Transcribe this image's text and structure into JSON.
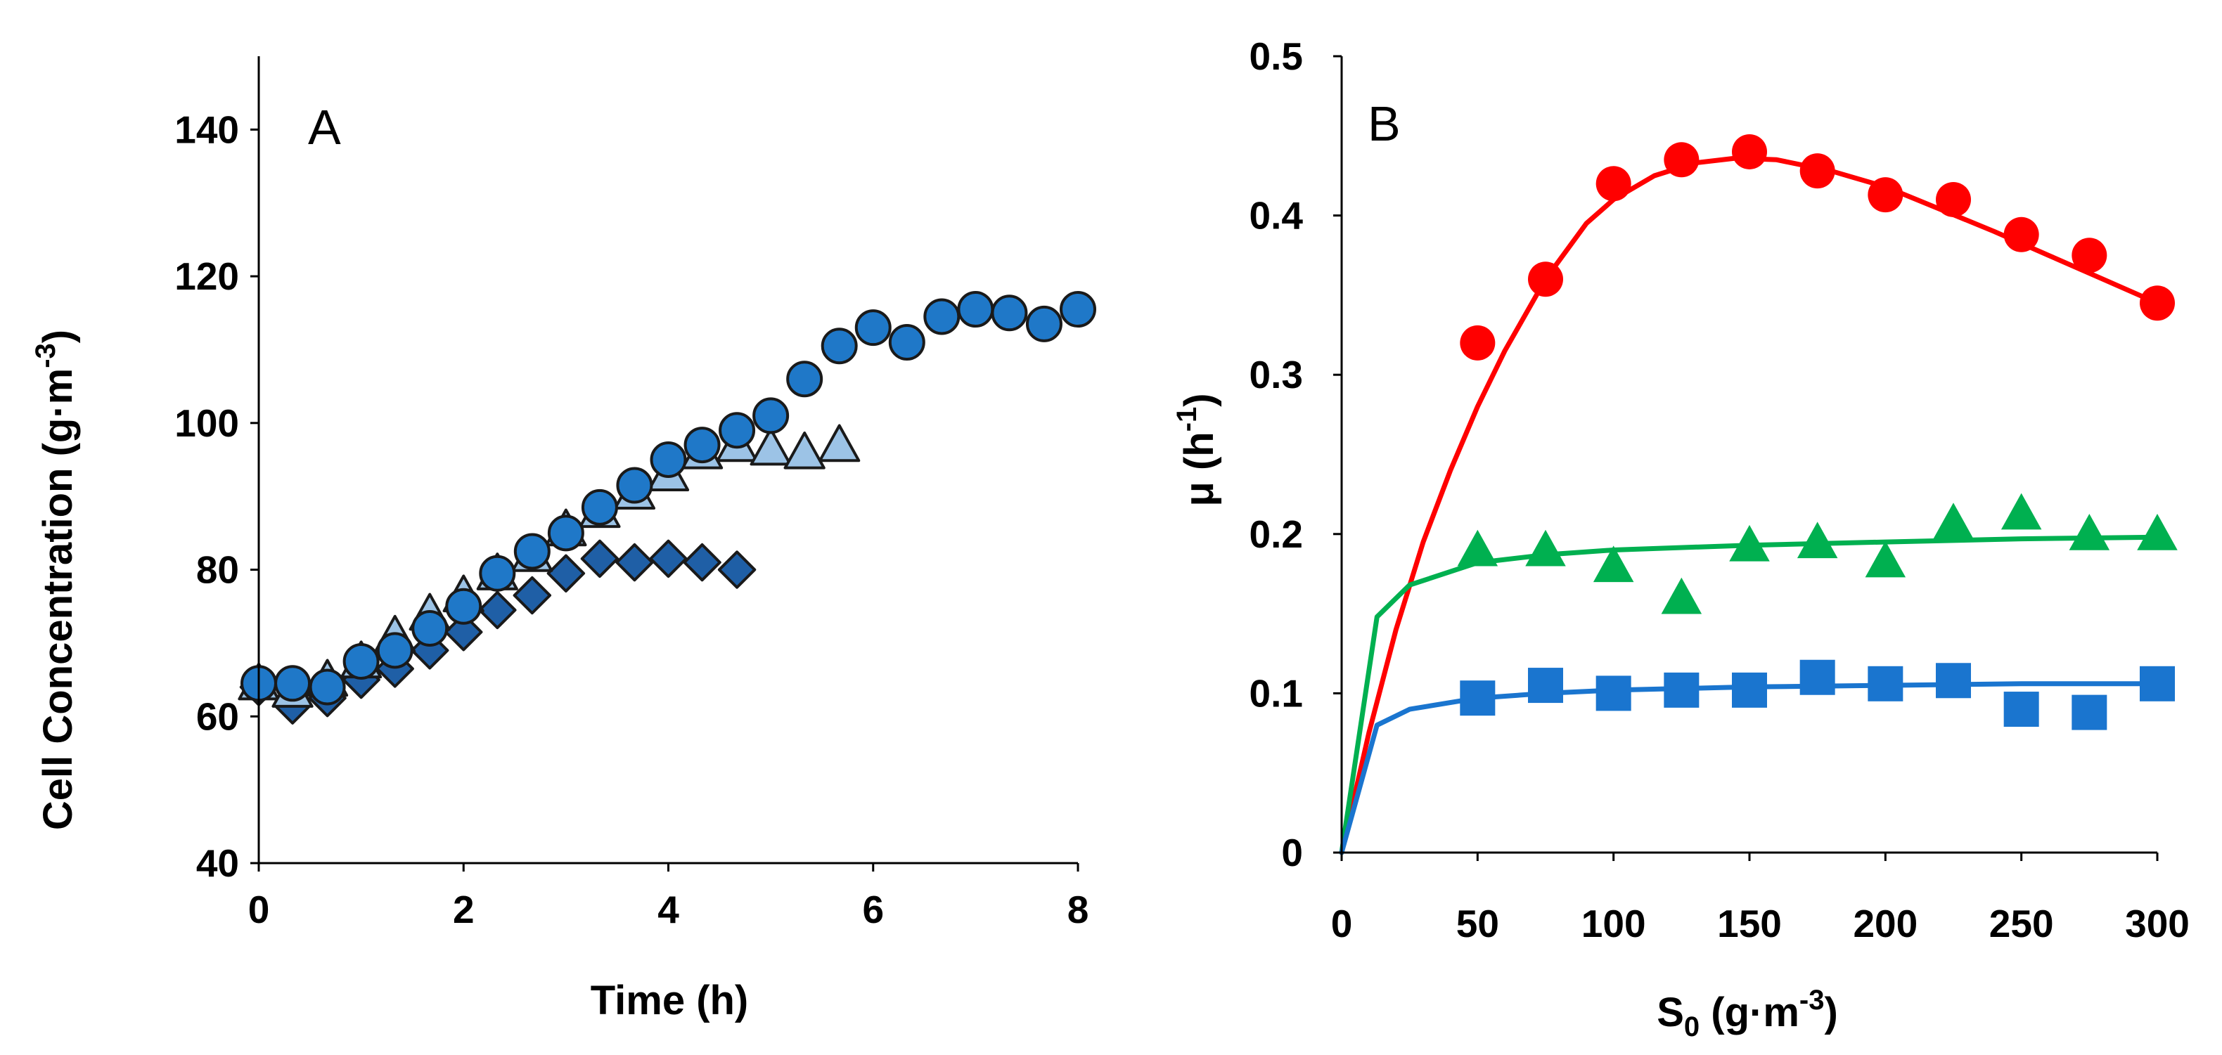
{
  "chart_data": [
    {
      "type": "scatter",
      "panel_label": "A",
      "xlabel": "Time (h)",
      "ylabel": {
        "main": "Cell Concentration (g·m",
        "sup": "-3",
        "end": ")"
      },
      "xlim": [
        0,
        8
      ],
      "ylim": [
        40,
        150
      ],
      "xticks": [
        0,
        2,
        4,
        6,
        8
      ],
      "yticks": [
        40,
        60,
        80,
        100,
        120,
        140
      ],
      "grid": false,
      "series": [
        {
          "name": "circles",
          "marker": "circle",
          "color": "#1f78c8",
          "x": [
            0,
            0.33,
            0.67,
            1,
            1.33,
            1.67,
            2,
            2.33,
            2.67,
            3,
            3.33,
            3.67,
            4,
            4.33,
            4.67,
            5,
            5.33,
            5.67,
            6,
            6.33,
            6.67,
            7,
            7.33,
            7.67,
            8
          ],
          "y": [
            64.5,
            64.5,
            64,
            67.5,
            69,
            72,
            75,
            79.5,
            82.5,
            85,
            88.5,
            91.5,
            95,
            97,
            99,
            101,
            106,
            110.5,
            113,
            111,
            114.5,
            115.5,
            115,
            113.5,
            115.5
          ]
        },
        {
          "name": "triangles",
          "marker": "triangle",
          "color": "#9cc3e6",
          "x": [
            0,
            0.33,
            0.67,
            1,
            1.33,
            1.67,
            2,
            2.33,
            2.67,
            3,
            3.33,
            3.67,
            4,
            4.33,
            4.67,
            5,
            5.33,
            5.67
          ],
          "y": [
            64.5,
            63.5,
            65,
            67.5,
            71,
            74,
            76.5,
            79.5,
            82,
            85.5,
            88,
            90.5,
            93,
            96,
            97,
            96.5,
            96,
            97
          ]
        },
        {
          "name": "diamonds",
          "marker": "diamond",
          "color": "#1f5fa6",
          "x": [
            0,
            0.33,
            0.67,
            1,
            1.33,
            1.67,
            2,
            2.33,
            2.67,
            3,
            3.33,
            3.67,
            4,
            4.33,
            4.67
          ],
          "y": [
            64,
            61.5,
            62.5,
            65,
            66.5,
            69,
            71.5,
            74.5,
            76.5,
            79.5,
            81.5,
            81,
            81.5,
            81,
            80
          ]
        }
      ]
    },
    {
      "type": "scatter",
      "panel_label": "B",
      "xlabel": {
        "main": "S",
        "sub": "0",
        "end": " (g·m",
        "sup": "-3",
        "tail": ")"
      },
      "ylabel": {
        "main": "μ (h",
        "sup": "-1",
        "end": ")"
      },
      "xlim": [
        0,
        300
      ],
      "ylim": [
        0,
        0.5
      ],
      "xticks": [
        0,
        50,
        100,
        150,
        200,
        250,
        300
      ],
      "yticks": [
        0,
        0.1,
        0.2,
        0.3,
        0.4,
        0.5
      ],
      "ytick_labels": [
        "0",
        "0.1",
        "0.2",
        "0.3",
        "0.4",
        "0.5"
      ],
      "grid": false,
      "series": [
        {
          "name": "circles",
          "marker": "circle",
          "color": "#ff0000",
          "x": [
            50,
            75,
            100,
            125,
            150,
            175,
            200,
            225,
            250,
            275,
            300
          ],
          "y": [
            0.32,
            0.36,
            0.42,
            0.435,
            0.44,
            0.428,
            0.413,
            0.41,
            0.388,
            0.375,
            0.345
          ],
          "fit_x": [
            0,
            10,
            20,
            30,
            40,
            50,
            60,
            75,
            90,
            100,
            115,
            130,
            145,
            160,
            180,
            200,
            220,
            240,
            260,
            280,
            300
          ],
          "fit_y": [
            0,
            0.075,
            0.14,
            0.195,
            0.24,
            0.28,
            0.315,
            0.36,
            0.395,
            0.41,
            0.425,
            0.433,
            0.436,
            0.435,
            0.428,
            0.418,
            0.404,
            0.39,
            0.375,
            0.36,
            0.345
          ]
        },
        {
          "name": "triangles",
          "marker": "triangle",
          "color": "#00b050",
          "x": [
            50,
            75,
            100,
            125,
            150,
            175,
            200,
            225,
            250,
            275,
            300
          ],
          "y": [
            0.19,
            0.19,
            0.18,
            0.16,
            0.193,
            0.195,
            0.183,
            0.207,
            0.213,
            0.2,
            0.2
          ],
          "fit_x": [
            0,
            13,
            25,
            50,
            75,
            100,
            150,
            200,
            250,
            300
          ],
          "fit_y": [
            0,
            0.148,
            0.168,
            0.182,
            0.187,
            0.19,
            0.193,
            0.195,
            0.197,
            0.198
          ]
        },
        {
          "name": "squares",
          "marker": "square",
          "color": "#1a75cf",
          "x": [
            50,
            75,
            100,
            125,
            150,
            175,
            200,
            225,
            250,
            275,
            300
          ],
          "y": [
            0.097,
            0.105,
            0.1,
            0.102,
            0.102,
            0.11,
            0.106,
            0.108,
            0.09,
            0.088,
            0.106
          ],
          "fit_x": [
            0,
            13,
            25,
            50,
            75,
            100,
            150,
            200,
            250,
            300
          ],
          "fit_y": [
            0,
            0.08,
            0.09,
            0.097,
            0.1,
            0.102,
            0.104,
            0.105,
            0.106,
            0.106
          ]
        }
      ]
    }
  ]
}
